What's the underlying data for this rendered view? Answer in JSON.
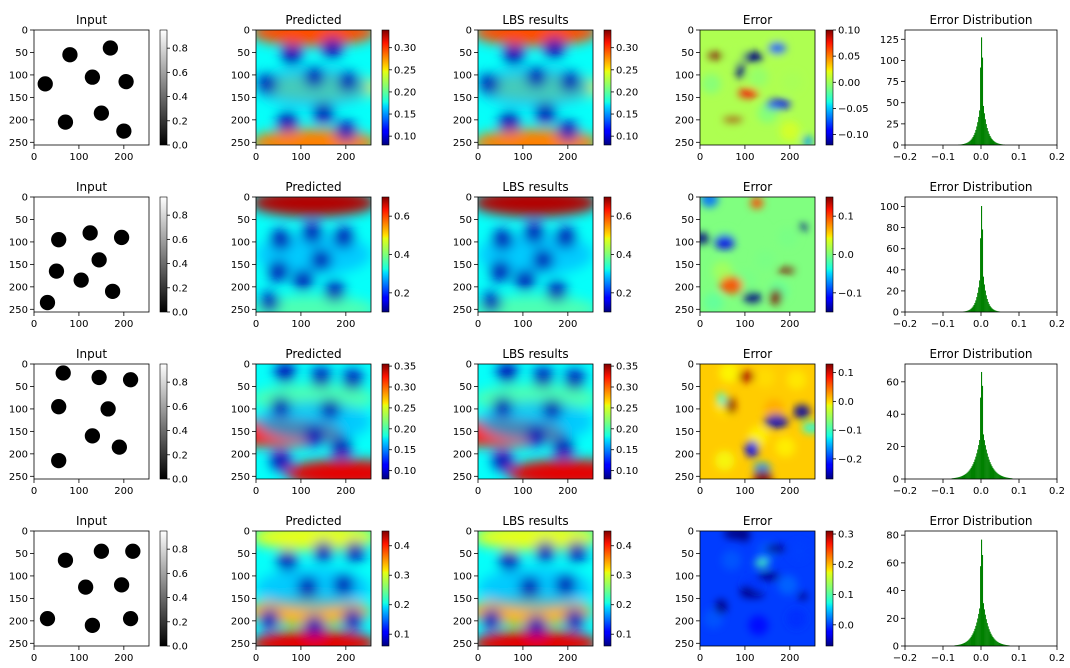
{
  "chart_data": {
    "type": "heatmap",
    "x_ticks": [
      0,
      100,
      200
    ],
    "y_ticks": [
      0,
      50,
      100,
      150,
      200,
      250
    ],
    "hist_x_ticks": [
      -0.2,
      -0.1,
      0.0,
      0.1,
      0.2
    ],
    "hist_x_labels": [
      "−0.2",
      "−0.1",
      "0.0",
      "0.1",
      "0.2"
    ],
    "hist_xlim": [
      -0.2,
      0.2
    ],
    "colors": {
      "hist": "#008000",
      "circle": "#000000"
    },
    "rows": [
      {
        "input": {
          "title": "Input",
          "colorbar": {
            "ticks": [
              0.0,
              0.2,
              0.4,
              0.6,
              0.8
            ],
            "labels": [
              "0.0",
              "0.2",
              "0.4",
              "0.6",
              "0.8"
            ],
            "range": [
              0.0,
              0.95
            ]
          },
          "circles": [
            [
              80,
              55,
              17
            ],
            [
              170,
              40,
              17
            ],
            [
              25,
              120,
              17
            ],
            [
              130,
              105,
              17
            ],
            [
              205,
              115,
              17
            ],
            [
              70,
              205,
              17
            ],
            [
              150,
              185,
              17
            ],
            [
              200,
              225,
              17
            ]
          ]
        },
        "predicted": {
          "title": "Predicted",
          "colorbar": {
            "ticks": [
              0.1,
              0.15,
              0.2,
              0.25,
              0.3
            ],
            "labels": [
              "0.10",
              "0.15",
              "0.20",
              "0.25",
              "0.30"
            ],
            "range": [
              0.08,
              0.34
            ]
          }
        },
        "lbs": {
          "title": "LBS results",
          "colorbar": {
            "ticks": [
              0.1,
              0.15,
              0.2,
              0.25,
              0.3
            ],
            "labels": [
              "0.10",
              "0.15",
              "0.20",
              "0.25",
              "0.30"
            ],
            "range": [
              0.08,
              0.34
            ]
          }
        },
        "error": {
          "title": "Error",
          "colorbar": {
            "ticks": [
              -0.1,
              -0.05,
              0.0,
              0.05,
              0.1
            ],
            "labels": [
              "−0.10",
              "−0.05",
              "0.00",
              "0.05",
              "0.10"
            ],
            "range": [
              -0.12,
              0.1
            ]
          }
        },
        "hist": {
          "title": "Error Distribution",
          "y_ticks": [
            0,
            25,
            50,
            75,
            100,
            125
          ],
          "ylim": [
            0,
            136
          ],
          "peak": 130,
          "spread": 0.012
        }
      },
      {
        "input": {
          "title": "Input",
          "colorbar": {
            "ticks": [
              0.0,
              0.2,
              0.4,
              0.6,
              0.8
            ],
            "labels": [
              "0.0",
              "0.2",
              "0.4",
              "0.6",
              "0.8"
            ],
            "range": [
              0.0,
              0.95
            ]
          },
          "circles": [
            [
              55,
              95,
              17
            ],
            [
              125,
              80,
              17
            ],
            [
              195,
              90,
              17
            ],
            [
              50,
              165,
              17
            ],
            [
              145,
              140,
              17
            ],
            [
              105,
              185,
              17
            ],
            [
              175,
              210,
              17
            ],
            [
              30,
              235,
              17
            ]
          ]
        },
        "predicted": {
          "title": "Predicted",
          "colorbar": {
            "ticks": [
              0.2,
              0.4,
              0.6
            ],
            "labels": [
              "0.2",
              "0.4",
              "0.6"
            ],
            "range": [
              0.1,
              0.7
            ]
          }
        },
        "lbs": {
          "title": "LBS results",
          "colorbar": {
            "ticks": [
              0.2,
              0.4,
              0.6
            ],
            "labels": [
              "0.2",
              "0.4",
              "0.6"
            ],
            "range": [
              0.1,
              0.7
            ]
          }
        },
        "error": {
          "title": "Error",
          "colorbar": {
            "ticks": [
              -0.1,
              0.0,
              0.1
            ],
            "labels": [
              "−0.1",
              "0.0",
              "0.1"
            ],
            "range": [
              -0.15,
              0.15
            ]
          }
        },
        "hist": {
          "title": "Error Distribution",
          "y_ticks": [
            0,
            20,
            40,
            60,
            80,
            100
          ],
          "ylim": [
            0,
            109
          ],
          "peak": 103,
          "spread": 0.01
        }
      },
      {
        "input": {
          "title": "Input",
          "colorbar": {
            "ticks": [
              0.0,
              0.2,
              0.4,
              0.6,
              0.8
            ],
            "labels": [
              "0.0",
              "0.2",
              "0.4",
              "0.6",
              "0.8"
            ],
            "range": [
              0.0,
              0.95
            ]
          },
          "circles": [
            [
              65,
              20,
              17
            ],
            [
              145,
              30,
              17
            ],
            [
              215,
              35,
              17
            ],
            [
              55,
              95,
              17
            ],
            [
              165,
              100,
              17
            ],
            [
              130,
              160,
              17
            ],
            [
              190,
              185,
              17
            ],
            [
              55,
              215,
              17
            ]
          ]
        },
        "predicted": {
          "title": "Predicted",
          "colorbar": {
            "ticks": [
              0.1,
              0.15,
              0.2,
              0.25,
              0.3,
              0.35
            ],
            "labels": [
              "0.10",
              "0.15",
              "0.20",
              "0.25",
              "0.30",
              "0.35"
            ],
            "range": [
              0.08,
              0.355
            ]
          }
        },
        "lbs": {
          "title": "LBS results",
          "colorbar": {
            "ticks": [
              0.1,
              0.15,
              0.2,
              0.25,
              0.3,
              0.35
            ],
            "labels": [
              "0.10",
              "0.15",
              "0.20",
              "0.25",
              "0.30",
              "0.35"
            ],
            "range": [
              0.08,
              0.355
            ]
          }
        },
        "error": {
          "title": "Error",
          "colorbar": {
            "ticks": [
              -0.2,
              -0.1,
              0.0,
              0.1
            ],
            "labels": [
              "−0.2",
              "−0.1",
              "0.0",
              "0.1"
            ],
            "range": [
              -0.27,
              0.13
            ]
          }
        },
        "hist": {
          "title": "Error Distribution",
          "y_ticks": [
            0,
            20,
            40,
            60
          ],
          "ylim": [
            0,
            71
          ],
          "peak": 67,
          "spread": 0.018
        }
      },
      {
        "input": {
          "title": "Input",
          "colorbar": {
            "ticks": [
              0.0,
              0.2,
              0.4,
              0.6,
              0.8
            ],
            "labels": [
              "0.0",
              "0.2",
              "0.4",
              "0.6",
              "0.8"
            ],
            "range": [
              0.0,
              0.95
            ]
          },
          "circles": [
            [
              70,
              65,
              17
            ],
            [
              150,
              45,
              17
            ],
            [
              220,
              45,
              17
            ],
            [
              115,
              125,
              17
            ],
            [
              195,
              120,
              17
            ],
            [
              30,
              195,
              17
            ],
            [
              130,
              210,
              17
            ],
            [
              215,
              195,
              17
            ]
          ]
        },
        "predicted": {
          "title": "Predicted",
          "colorbar": {
            "ticks": [
              0.1,
              0.2,
              0.3,
              0.4
            ],
            "labels": [
              "0.1",
              "0.2",
              "0.3",
              "0.4"
            ],
            "range": [
              0.06,
              0.45
            ]
          }
        },
        "lbs": {
          "title": "LBS results",
          "colorbar": {
            "ticks": [
              0.1,
              0.2,
              0.3,
              0.4
            ],
            "labels": [
              "0.1",
              "0.2",
              "0.3",
              "0.4"
            ],
            "range": [
              0.06,
              0.45
            ]
          }
        },
        "error": {
          "title": "Error",
          "colorbar": {
            "ticks": [
              0.0,
              0.1,
              0.2,
              0.3
            ],
            "labels": [
              "0.0",
              "0.1",
              "0.2",
              "0.3"
            ],
            "range": [
              -0.07,
              0.31
            ]
          }
        },
        "hist": {
          "title": "Error Distribution",
          "y_ticks": [
            0,
            20,
            40,
            60,
            80
          ],
          "ylim": [
            0,
            83
          ],
          "peak": 78,
          "spread": 0.016
        }
      }
    ]
  }
}
